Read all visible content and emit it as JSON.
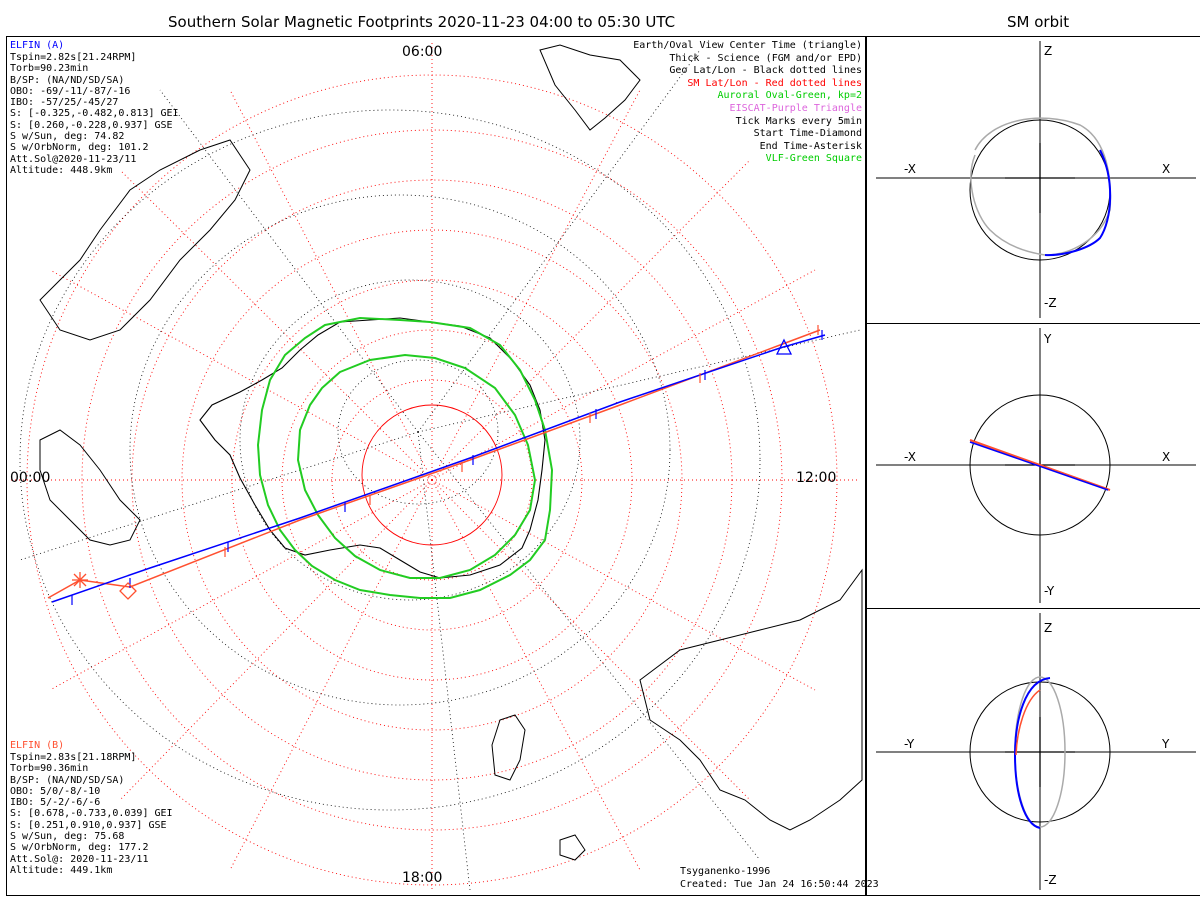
{
  "title": "Southern Solar Magnetic Footprints 2020-11-23 04:00 to 05:30 UTC",
  "orbit_title": "SM orbit",
  "elfin_a": {
    "name": "ELFIN (A)",
    "lines": [
      "Tspin=2.82s[21.24RPM]",
      "Torb=90.23min",
      "B/SP: (NA/ND/SD/SA)",
      "OBO: -69/-11/-87/-16",
      "IBO: -57/25/-45/27",
      "S: [-0.325,-0.482,0.813] GEI",
      "S: [0.260,-0.228,0.937] GSE",
      "S w/Sun, deg: 74.82",
      "S w/OrbNorm, deg: 101.2",
      "Att.Sol@2020-11-23/11",
      "Altitude: 448.9km"
    ]
  },
  "elfin_b": {
    "name": "ELFIN (B)",
    "lines": [
      "Tspin=2.83s[21.18RPM]",
      "Torb=90.36min",
      "B/SP: (NA/ND/SD/SA)",
      "OBO: 5/0/-8/-10",
      "IBO: 5/-2/-6/-6",
      "S: [0.678,-0.733,0.039] GEI",
      "S: [0.251,0.910,0.937] GSE",
      "S w/Sun, deg: 75.68",
      "S w/OrbNorm, deg: 177.2",
      "Att.Sol@: 2020-11-23/11",
      "Altitude: 449.1km"
    ]
  },
  "legend": [
    {
      "text": "Earth/Oval View Center Time (triangle)",
      "color": "#000000"
    },
    {
      "text": "Thick - Science (FGM and/or EPD)",
      "color": "#000000"
    },
    {
      "text": "Geo Lat/Lon - Black dotted lines",
      "color": "#000000"
    },
    {
      "text": "SM Lat/Lon - Red dotted lines",
      "color": "#ff0000"
    },
    {
      "text": "Auroral Oval-Green, kp=2",
      "color": "#00cc00"
    },
    {
      "text": "EISCAT-Purple Triangle",
      "color": "#dd66dd"
    },
    {
      "text": "Tick Marks every 5min",
      "color": "#000000"
    },
    {
      "text": "Start Time-Diamond",
      "color": "#000000"
    },
    {
      "text": "End Time-Asterisk",
      "color": "#000000"
    },
    {
      "text": "VLF-Green Square",
      "color": "#00cc00"
    }
  ],
  "mlt_labels": {
    "top": "06:00",
    "left": "00:00",
    "right": "12:00",
    "bottom": "18:00"
  },
  "model": "Tsyganenko-1996",
  "created": "Created: Tue Jan 24 16:50:44 2023",
  "orbit_panels": [
    {
      "top": "Z",
      "bottom": "-Z",
      "left": "-X",
      "right": "X"
    },
    {
      "top": "Y",
      "bottom": "-Y",
      "left": "-X",
      "right": "X"
    },
    {
      "top": "Z",
      "bottom": "-Z",
      "left": "-Y",
      "right": "Y"
    }
  ],
  "colors": {
    "elfin_a": "#0000ff",
    "elfin_b": "#ff5030",
    "sm_grid": "#ff0000",
    "oval": "#22cc22",
    "orbit_gray": "#aaaaaa"
  }
}
